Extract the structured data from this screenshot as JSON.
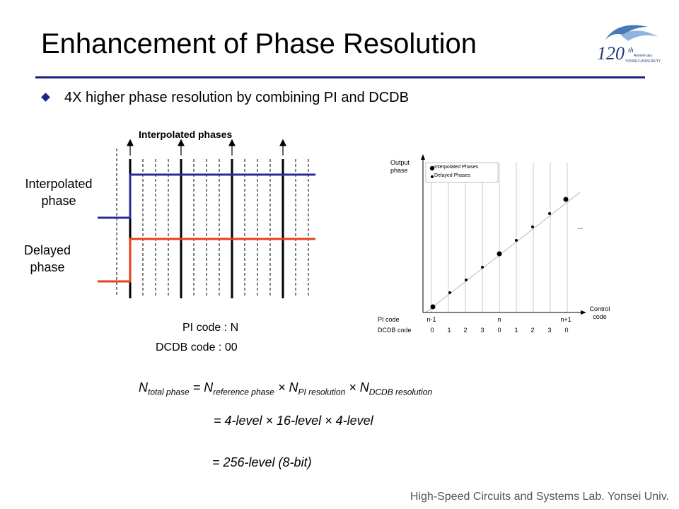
{
  "slide": {
    "title": "Enhancement of Phase Resolution",
    "bullet": "4X higher phase resolution by combining PI and DCDB",
    "footer": "High-Speed Circuits and Systems Lab. Yonsei Univ.",
    "logo_text": "120th Anniversary YONSEI UNIVERSITY"
  },
  "timing_diagram": {
    "top_label": "Interpolated phases",
    "interpolated_label": "Interpolated phase",
    "delayed_label": "Delayed phase",
    "pi_code": "PI code : N",
    "dcdb_code": "DCDB code : 00",
    "colors": {
      "interpolated": "#2a2a9a",
      "delayed": "#e8401a"
    }
  },
  "graph": {
    "y_axis_label": "Output phase",
    "x_axis_label": "Control code",
    "legend": [
      "Interpolated Phases",
      "Delayed Phases"
    ],
    "ellipsis": "...",
    "pi_code_label": "PI code",
    "dcdb_code_label": "DCDB code",
    "pi_ticks": [
      "n-1",
      "n",
      "n+1"
    ],
    "dcdb_ticks": [
      "0",
      "1",
      "2",
      "3",
      "0",
      "1",
      "2",
      "3",
      "0"
    ]
  },
  "equation": {
    "lhs_n": "N",
    "lhs_sub": "total phase",
    "eq": " = ",
    "t1_n": "N",
    "t1_sub": "reference phase",
    "times": " × ",
    "t2_n": "N",
    "t2_sub": "PI resolution",
    "t3_n": "N",
    "t3_sub": "DCDB resolution",
    "line2": "= 4-level  × 16-level  × 4-level",
    "line3": "= 256-level  (8-bit)"
  }
}
